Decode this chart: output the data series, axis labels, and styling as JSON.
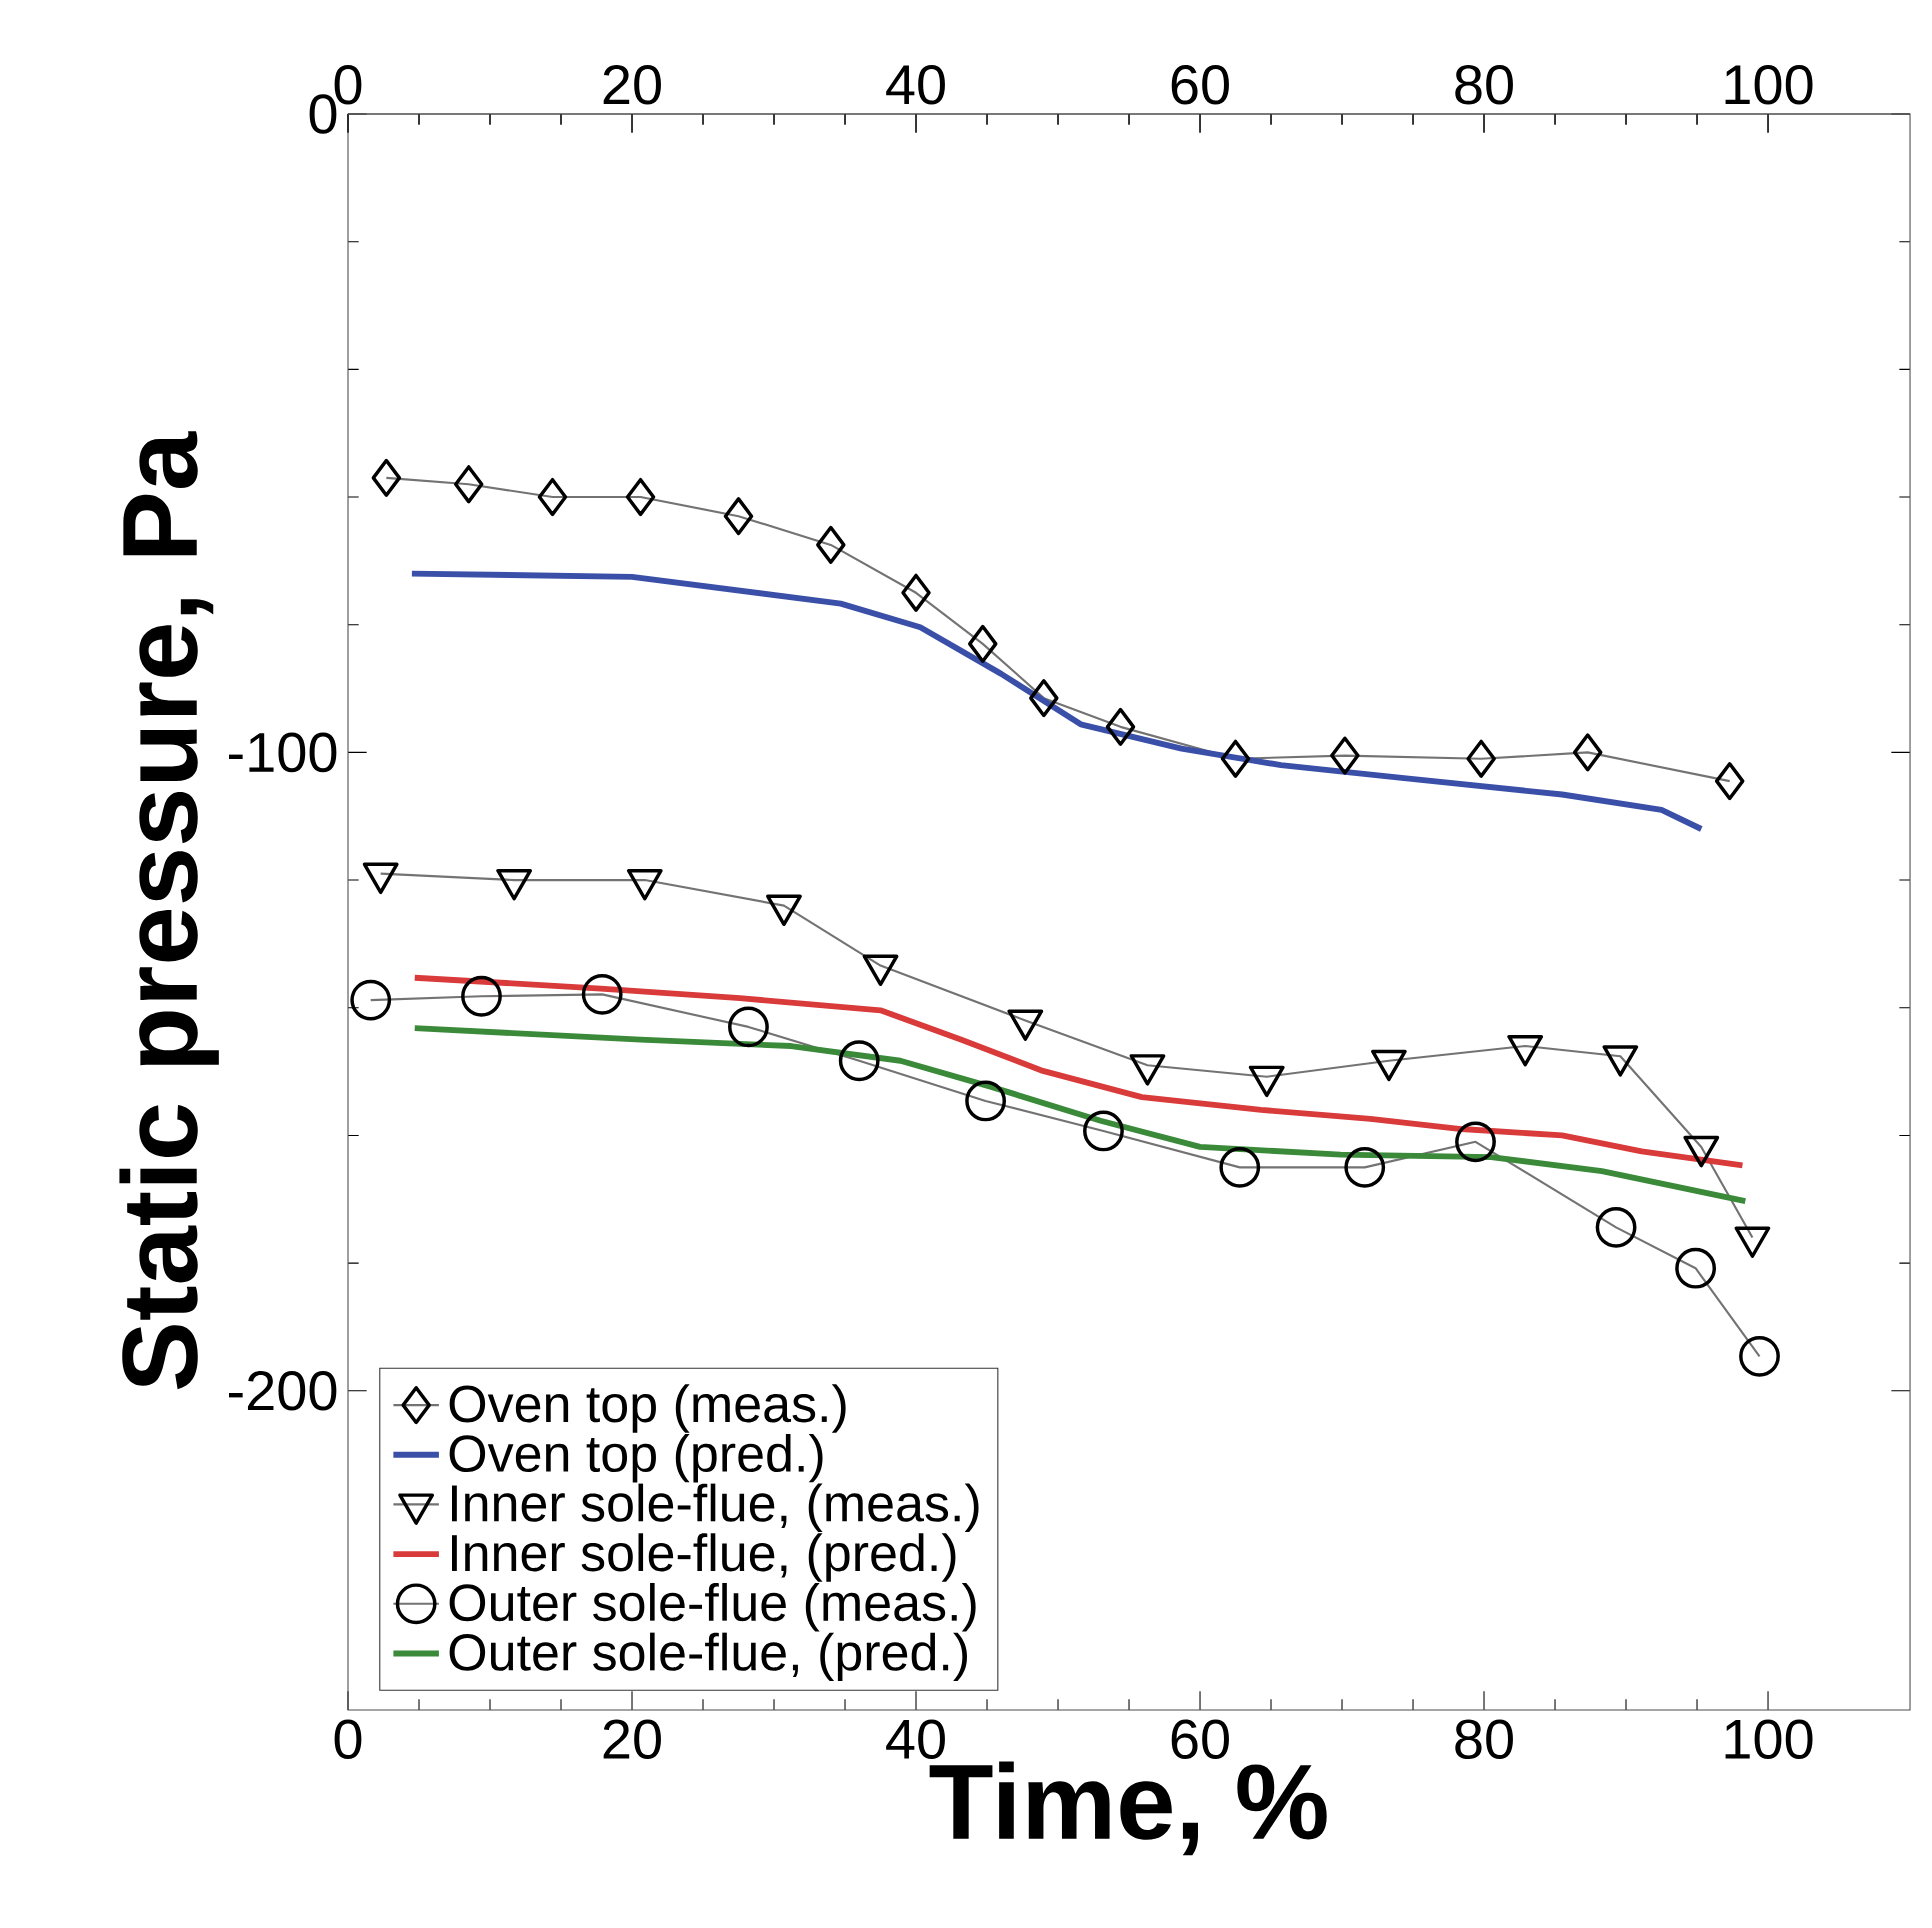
{
  "chart_data": {
    "type": "line",
    "xlabel": "Time, %",
    "ylabel": "Static pressure, Pa",
    "xlim": [
      0,
      110
    ],
    "ylim": [
      -250,
      0
    ],
    "xticks": [
      0,
      20,
      40,
      60,
      80,
      100
    ],
    "yticks": [
      0,
      -100,
      -200
    ],
    "x2lim": [
      0,
      110
    ],
    "x2ticks": [
      0,
      20,
      40,
      60,
      80,
      100
    ],
    "legend": "bottom left",
    "grid": false,
    "series": [
      {
        "name": "Oven top (meas.)",
        "color": "#000000",
        "marker": "diamond",
        "x": [
          2.7,
          8.5,
          14.4,
          20.6,
          27.5,
          34,
          40,
          44.7,
          49,
          54.4,
          62.5,
          70.2,
          79.8,
          87.3,
          97.3
        ],
        "values": [
          -57,
          -58,
          -60,
          -60,
          -63,
          -67.5,
          -75,
          -83,
          -91.5,
          -96,
          -101,
          -100.5,
          -101,
          -100,
          -104.5
        ]
      },
      {
        "name": "Oven top (pred.)",
        "color": "#3a4fa8",
        "marker": "none",
        "x": [
          4.5,
          20,
          34.7,
          40.3,
          46,
          51.6,
          58.7,
          65.7,
          74.2,
          85.5,
          92.5,
          95.3
        ],
        "values": [
          -72,
          -72.5,
          -76.7,
          -80.4,
          -87.7,
          -95.6,
          -99.4,
          -102,
          -104,
          -106.6,
          -109,
          -112
        ]
      },
      {
        "name": "Inner sole-flue, (meas.)",
        "color": "#000000",
        "marker": "triangle",
        "x": [
          2.3,
          11.7,
          20.9,
          30.7,
          37.5,
          47.7,
          56.3,
          64.7,
          73.3,
          82.9,
          89.6,
          95.3,
          98.9
        ],
        "values": [
          -119,
          -120,
          -120,
          -124,
          -133.4,
          -142,
          -149,
          -150.8,
          -148.3,
          -146,
          -147.6,
          -161.8,
          -176
        ]
      },
      {
        "name": "Inner sole-flue, (pred.)",
        "color": "#d93a3a",
        "marker": "none",
        "x": [
          4.7,
          17.8,
          27.6,
          37.5,
          43.2,
          48.8,
          55.9,
          64.3,
          72,
          78.4,
          85.5,
          91.1,
          98.2
        ],
        "values": [
          -135.3,
          -137,
          -138.5,
          -140.4,
          -145,
          -149.8,
          -154,
          -156,
          -157.4,
          -159,
          -160,
          -162.5,
          -164.7
        ]
      },
      {
        "name": "Outer sole-flue (meas.)",
        "color": "#000000",
        "marker": "circle",
        "x": [
          1.6,
          9.4,
          17.9,
          28.2,
          36,
          44.9,
          53.2,
          62.8,
          71.6,
          79.4,
          89.3,
          94.9,
          99.4
        ],
        "values": [
          -138.8,
          -138.2,
          -137.9,
          -143,
          -148.3,
          -154.6,
          -159.3,
          -165,
          -165,
          -161,
          -174.4,
          -180.8,
          -194.6
        ]
      },
      {
        "name": "Outer sole-flue, (pred.)",
        "color": "#3a8a3a",
        "marker": "none",
        "x": [
          4.7,
          20.6,
          31.2,
          38.9,
          45.3,
          53,
          60,
          69.9,
          80.5,
          88.3,
          98.4
        ],
        "values": [
          -143.2,
          -145,
          -146,
          -148.3,
          -152.4,
          -157.7,
          -161.8,
          -163,
          -163.4,
          -165.6,
          -170.3
        ]
      }
    ]
  }
}
